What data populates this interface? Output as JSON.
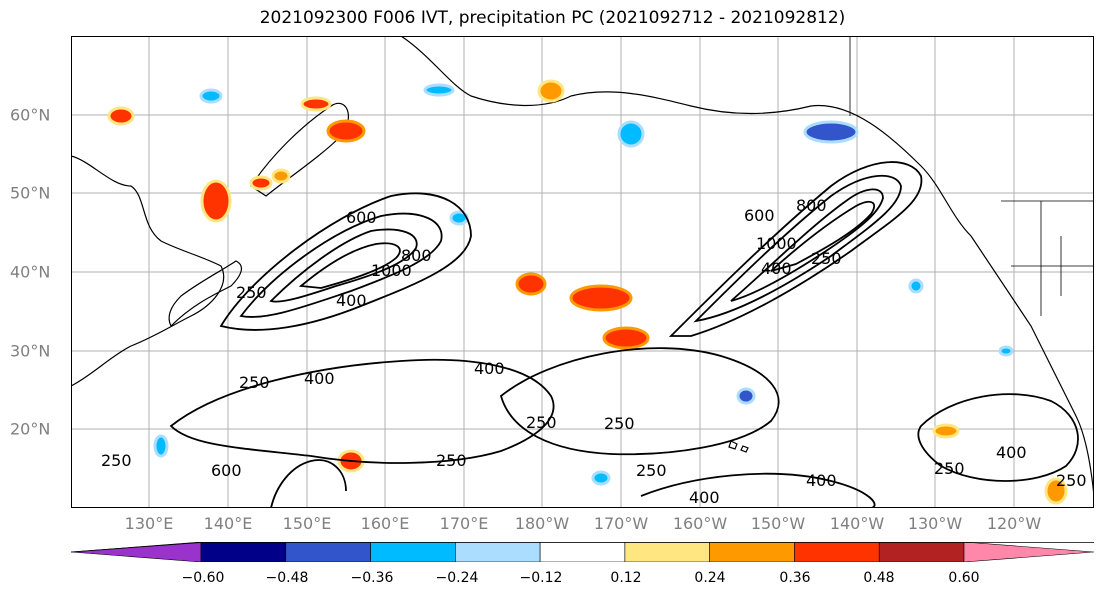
{
  "title": "2021092300 F006 IVT, precipitation PC (2021092712 - 2021092812)",
  "map": {
    "lon_labels": [
      "130°E",
      "140°E",
      "150°E",
      "160°E",
      "170°E",
      "180°W",
      "170°W",
      "160°W",
      "150°W",
      "140°W",
      "130°W",
      "120°W"
    ],
    "lat_labels": [
      "60°N",
      "50°N",
      "40°N",
      "30°N",
      "20°N"
    ],
    "ivt_contour_labels": [
      "600",
      "1000",
      "400",
      "250",
      "800",
      "250",
      "400",
      "250",
      "400",
      "250",
      "250",
      "250",
      "400",
      "600",
      "1000",
      "800",
      "400",
      "250",
      "400",
      "250",
      "400",
      "250",
      "600",
      "250"
    ],
    "land_color": "#ffffff",
    "grid_color": "#b0b0b0"
  },
  "colorbar": {
    "colors": [
      "#9933cc",
      "#000088",
      "#3355cc",
      "#00bbff",
      "#aaddff",
      "#ffffff",
      "#ffe680",
      "#ff9900",
      "#ff3300",
      "#b22222",
      "#ff88aa"
    ],
    "tick_labels": [
      "−0.60",
      "−0.48",
      "−0.36",
      "−0.24",
      "−0.12",
      "0.12",
      "0.24",
      "0.36",
      "0.48",
      "0.60"
    ],
    "extend": "both"
  }
}
